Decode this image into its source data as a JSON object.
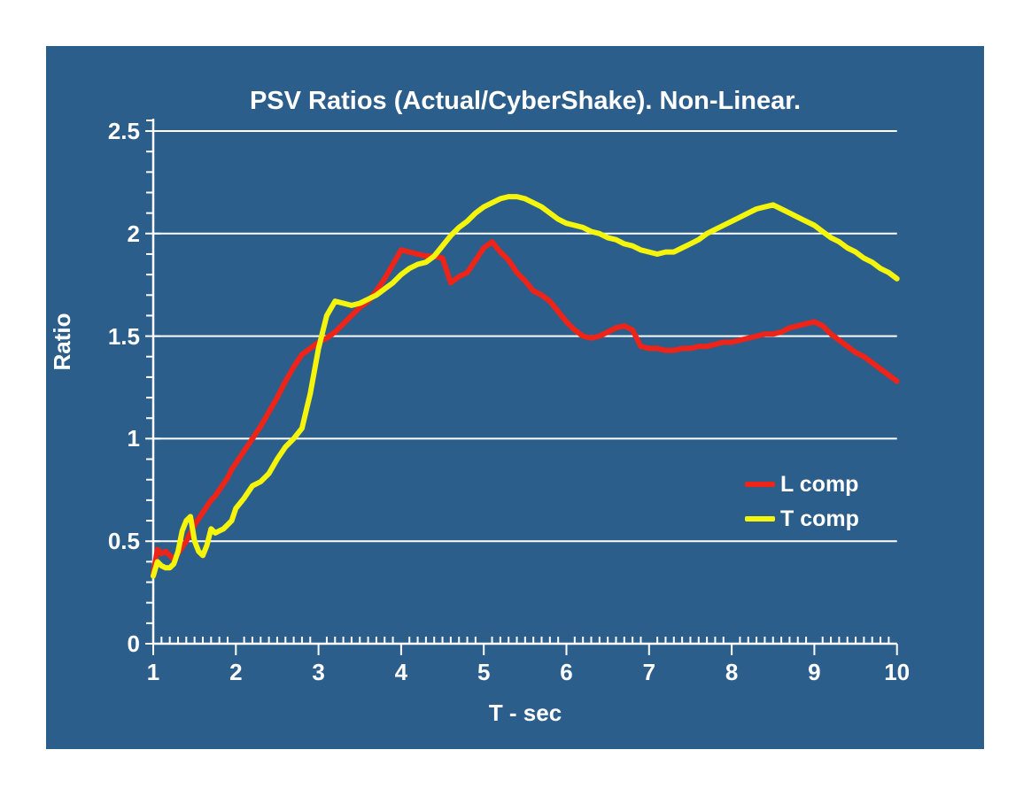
{
  "page": {
    "background_color": "#ffffff"
  },
  "chart": {
    "title": "PSV Ratios (Actual/CyberShake). Non-Linear.",
    "background_color": "#2C5E8C",
    "axis_color": "#ffffff",
    "gridline_color": "#ffffff",
    "x_axis": {
      "label": "T - sec",
      "min": 1,
      "max": 10,
      "major_tick_step": 1,
      "minor_tick_step": 0.1,
      "tick_labels": [
        "1",
        "2",
        "3",
        "4",
        "5",
        "6",
        "7",
        "8",
        "9",
        "10"
      ]
    },
    "y_axis": {
      "label": "Ratio",
      "min": 0,
      "max": 2.5,
      "major_tick_step": 0.5,
      "minor_tick_step": 0.1,
      "tick_labels": [
        "0",
        "0.5",
        "1",
        "1.5",
        "2",
        "2.5"
      ]
    },
    "legend": [
      {
        "label": "L comp",
        "color": "#ED2417"
      },
      {
        "label": "T comp",
        "color": "#F5F50C"
      }
    ]
  },
  "chart_data": {
    "type": "line",
    "title": "PSV Ratios (Actual/CyberShake). Non-Linear.",
    "xlabel": "T - sec",
    "ylabel": "Ratio",
    "xlim": [
      1,
      10
    ],
    "ylim": [
      0,
      2.5
    ],
    "grid": "horizontal-major",
    "legend_position": "inside-right",
    "x": [
      1,
      1.05,
      1.1,
      1.15,
      1.2,
      1.25,
      1.3,
      1.35,
      1.4,
      1.45,
      1.5,
      1.55,
      1.6,
      1.65,
      1.7,
      1.75,
      1.8,
      1.85,
      1.9,
      1.95,
      2,
      2.1,
      2.2,
      2.3,
      2.4,
      2.5,
      2.6,
      2.7,
      2.8,
      2.9,
      3,
      3.1,
      3.2,
      3.3,
      3.4,
      3.5,
      3.6,
      3.7,
      3.8,
      3.9,
      4,
      4.1,
      4.2,
      4.3,
      4.4,
      4.5,
      4.6,
      4.7,
      4.8,
      4.9,
      5,
      5.1,
      5.2,
      5.3,
      5.4,
      5.5,
      5.6,
      5.7,
      5.8,
      5.9,
      6,
      6.1,
      6.2,
      6.3,
      6.4,
      6.5,
      6.6,
      6.7,
      6.8,
      6.9,
      7,
      7.1,
      7.2,
      7.3,
      7.4,
      7.5,
      7.6,
      7.7,
      7.8,
      7.9,
      8,
      8.1,
      8.2,
      8.3,
      8.4,
      8.5,
      8.6,
      8.7,
      8.8,
      8.9,
      9,
      9.1,
      9.2,
      9.3,
      9.4,
      9.5,
      9.6,
      9.7,
      9.8,
      9.9,
      10
    ],
    "series": [
      {
        "name": "L comp",
        "color": "#ED2417",
        "y": [
          0.34,
          0.46,
          0.44,
          0.45,
          0.43,
          0.41,
          0.44,
          0.47,
          0.5,
          0.54,
          0.58,
          0.61,
          0.64,
          0.67,
          0.7,
          0.72,
          0.75,
          0.78,
          0.81,
          0.85,
          0.88,
          0.94,
          1.0,
          1.06,
          1.13,
          1.2,
          1.28,
          1.35,
          1.41,
          1.44,
          1.47,
          1.49,
          1.52,
          1.56,
          1.6,
          1.64,
          1.67,
          1.72,
          1.78,
          1.85,
          1.92,
          1.91,
          1.9,
          1.89,
          1.89,
          1.88,
          1.76,
          1.79,
          1.81,
          1.87,
          1.93,
          1.96,
          1.91,
          1.87,
          1.81,
          1.77,
          1.72,
          1.7,
          1.67,
          1.62,
          1.57,
          1.53,
          1.5,
          1.49,
          1.5,
          1.52,
          1.54,
          1.55,
          1.53,
          1.45,
          1.44,
          1.44,
          1.43,
          1.43,
          1.44,
          1.44,
          1.45,
          1.45,
          1.46,
          1.47,
          1.47,
          1.48,
          1.49,
          1.5,
          1.51,
          1.51,
          1.52,
          1.54,
          1.55,
          1.56,
          1.57,
          1.55,
          1.51,
          1.48,
          1.45,
          1.42,
          1.4,
          1.37,
          1.34,
          1.31,
          1.28
        ]
      },
      {
        "name": "T comp",
        "color": "#F5F50C",
        "y": [
          0.33,
          0.4,
          0.38,
          0.37,
          0.37,
          0.39,
          0.45,
          0.55,
          0.6,
          0.62,
          0.5,
          0.45,
          0.43,
          0.48,
          0.56,
          0.54,
          0.55,
          0.56,
          0.58,
          0.6,
          0.66,
          0.71,
          0.77,
          0.79,
          0.83,
          0.9,
          0.96,
          1.0,
          1.05,
          1.22,
          1.44,
          1.6,
          1.67,
          1.66,
          1.65,
          1.66,
          1.68,
          1.7,
          1.73,
          1.76,
          1.8,
          1.83,
          1.85,
          1.86,
          1.89,
          1.94,
          1.99,
          2.03,
          2.06,
          2.1,
          2.13,
          2.15,
          2.17,
          2.18,
          2.18,
          2.17,
          2.15,
          2.13,
          2.1,
          2.07,
          2.05,
          2.04,
          2.03,
          2.01,
          2.0,
          1.98,
          1.97,
          1.95,
          1.94,
          1.92,
          1.91,
          1.9,
          1.91,
          1.91,
          1.93,
          1.95,
          1.97,
          2.0,
          2.02,
          2.04,
          2.06,
          2.08,
          2.1,
          2.12,
          2.13,
          2.14,
          2.12,
          2.1,
          2.08,
          2.06,
          2.04,
          2.01,
          1.98,
          1.96,
          1.93,
          1.91,
          1.88,
          1.86,
          1.83,
          1.81,
          1.78
        ]
      }
    ]
  }
}
